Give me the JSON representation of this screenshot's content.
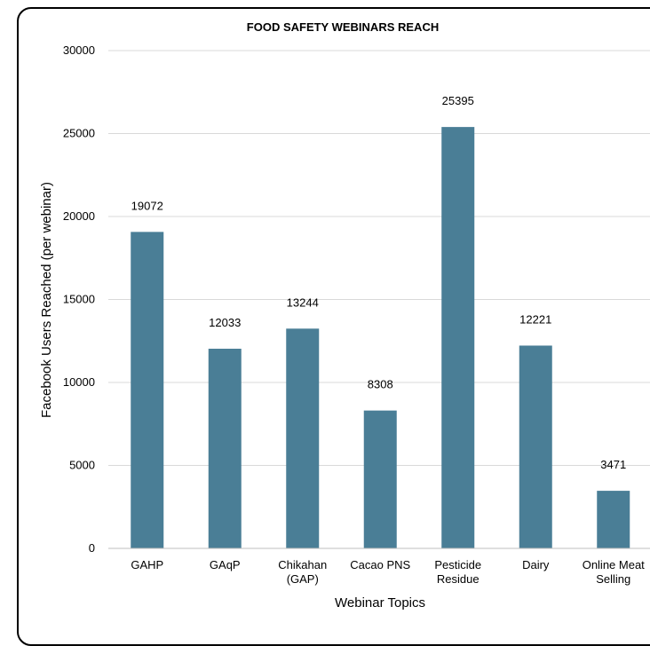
{
  "chart_data": {
    "type": "bar",
    "title": "FOOD SAFETY WEBINARS REACH",
    "xlabel": "Webinar Topics",
    "ylabel": "Facebook Users Reached (per webinar)",
    "categories": [
      [
        "GAHP"
      ],
      [
        "GAqP"
      ],
      [
        "Chikahan",
        "(GAP)"
      ],
      [
        "Cacao PNS"
      ],
      [
        "Pesticide",
        "Residue"
      ],
      [
        "Dairy"
      ],
      [
        "Online Meat",
        "Selling"
      ]
    ],
    "values": [
      19072,
      12033,
      13244,
      8308,
      25395,
      12221,
      3471
    ],
    "data_labels": [
      "19072",
      "12033",
      "13244",
      "8308",
      "25395",
      "12221",
      "3471"
    ],
    "yticks": [
      "0",
      "5000",
      "10000",
      "15000",
      "20000",
      "25000",
      "30000"
    ],
    "ylim": [
      0,
      30000
    ],
    "grid": true,
    "legend": "none",
    "bar_color": "#4a7e96"
  }
}
